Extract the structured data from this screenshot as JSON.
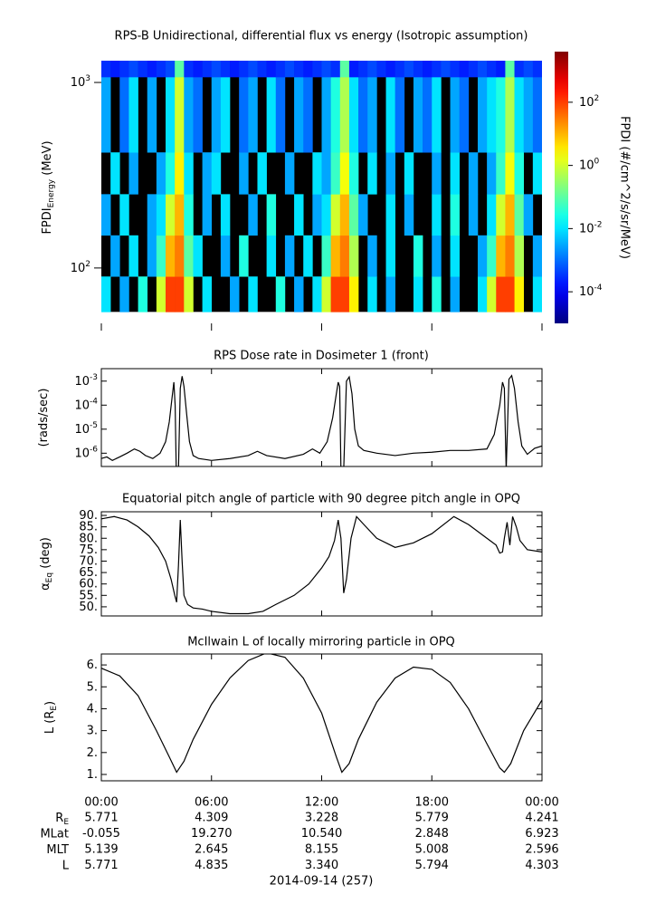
{
  "chart_data": [
    {
      "type": "spectrogram",
      "title": "RPS-B  Unidirectional, differential flux vs energy (Isotropic assumption)",
      "ylabel": {
        "text": "FPDI",
        "sub": "Energy",
        "after": " (MeV)"
      },
      "xlim": [
        0,
        24
      ],
      "ylim": [
        50.3,
        1466
      ],
      "ylog": true,
      "xticks": [
        0,
        6,
        12,
        18,
        24
      ],
      "yticks": [
        {
          "value": 100,
          "label": "10",
          "exponent": "2"
        },
        {
          "value": 1000,
          "label": "10",
          "exponent": "3"
        }
      ],
      "xbins": [
        0,
        0.5,
        1,
        1.5,
        2,
        2.5,
        3,
        3.5,
        4,
        4.5,
        5,
        5.5,
        6,
        6.5,
        7,
        7.5,
        8,
        8.5,
        9,
        9.5,
        10,
        10.5,
        11,
        11.5,
        12,
        12.5,
        13,
        13.5,
        14,
        14.5,
        15,
        15.5,
        16,
        16.5,
        17,
        17.5,
        18,
        18.5,
        19,
        19.5,
        20,
        20.5,
        21,
        21.5,
        22,
        22.5,
        23,
        23.5,
        24
      ],
      "ybins": [
        58,
        90,
        150,
        250,
        420,
        1070,
        1310
      ],
      "values": [
        [
          0.01,
          null,
          0.003,
          null,
          0.03,
          null,
          1,
          100,
          100,
          1,
          null,
          0.01,
          null,
          null,
          0.003,
          null,
          0.01,
          null,
          null,
          0.03,
          null,
          0.003,
          null,
          0.01,
          1,
          100,
          100,
          3,
          null,
          0.01,
          null,
          0.003,
          null,
          null,
          0.01,
          null,
          0.03,
          null,
          0.003,
          null,
          null,
          0.01,
          1,
          100,
          100,
          3,
          null,
          0.01
        ],
        [
          null,
          0.003,
          null,
          0.01,
          null,
          0.003,
          0.05,
          10,
          30,
          0.1,
          0.01,
          null,
          null,
          0.003,
          null,
          0.03,
          null,
          null,
          0.01,
          null,
          0.003,
          null,
          0.01,
          null,
          0.05,
          10,
          30,
          0.5,
          null,
          0.003,
          null,
          0.01,
          null,
          null,
          0.03,
          null,
          0.003,
          null,
          0.01,
          null,
          null,
          0.003,
          0.05,
          10,
          30,
          0.5,
          null,
          0.003
        ],
        [
          0.003,
          null,
          0.01,
          null,
          null,
          0.003,
          0.01,
          1,
          10,
          0.03,
          null,
          0.003,
          null,
          0.01,
          null,
          null,
          0.003,
          null,
          0.03,
          null,
          null,
          0.01,
          null,
          0.003,
          0.01,
          1,
          10,
          0.1,
          0.003,
          null,
          null,
          0.01,
          null,
          0.003,
          null,
          null,
          0.01,
          null,
          0.03,
          null,
          0.003,
          null,
          0.01,
          1,
          10,
          0.1,
          0.003,
          null
        ],
        [
          null,
          0.01,
          null,
          0.003,
          null,
          null,
          0.003,
          0.03,
          3,
          0.01,
          null,
          0.003,
          0.01,
          null,
          null,
          0.003,
          null,
          0.01,
          null,
          null,
          0.003,
          null,
          null,
          0.01,
          0.003,
          0.05,
          2,
          0.03,
          null,
          0.01,
          null,
          0.003,
          null,
          0.01,
          null,
          null,
          0.003,
          null,
          0.01,
          null,
          0.003,
          null,
          0.003,
          0.05,
          2,
          0.03,
          null,
          0.01
        ],
        [
          0.003,
          null,
          0.001,
          0.01,
          null,
          0.003,
          null,
          0.01,
          1,
          0.003,
          0.001,
          null,
          0.003,
          0.01,
          null,
          0.001,
          0.003,
          null,
          0.01,
          0.001,
          null,
          0.003,
          0.001,
          null,
          0.003,
          0.03,
          0.5,
          0.01,
          0.001,
          0.003,
          null,
          0.01,
          0.001,
          null,
          0.003,
          0.001,
          0.01,
          null,
          0.003,
          0.001,
          null,
          0.003,
          0.01,
          0.03,
          0.5,
          0.01,
          0.003,
          0.001
        ],
        [
          0.0003,
          0.0002,
          0.0003,
          0.0005,
          0.0003,
          0.0002,
          0.0003,
          0.0005,
          0.1,
          0.0003,
          0.0002,
          0.0003,
          0.0005,
          0.0003,
          0.0002,
          0.0003,
          0.0005,
          0.0003,
          0.0002,
          0.0003,
          0.0005,
          0.0003,
          0.0002,
          0.0003,
          0.0005,
          0.0003,
          0.1,
          0.0002,
          0.0003,
          0.0005,
          0.0003,
          0.0002,
          0.0003,
          0.0005,
          0.0003,
          0.0002,
          0.0003,
          0.0005,
          0.0003,
          0.0002,
          0.0003,
          0.0005,
          0.0003,
          0.0002,
          0.1,
          0.0003,
          0.0005,
          0.0003
        ]
      ],
      "colorbar": {
        "label": "FPDI (#/cm^2/s/sr/MeV)",
        "lim": [
          1e-05,
          4000
        ],
        "log": true,
        "colormap": "jet",
        "ticks": [
          {
            "value": 0.0001,
            "label": "10",
            "exponent": "-4"
          },
          {
            "value": 0.01,
            "label": "10",
            "exponent": "-2"
          },
          {
            "value": 1,
            "label": "10",
            "exponent": "0"
          },
          {
            "value": 100,
            "label": "10",
            "exponent": "2"
          }
        ]
      }
    },
    {
      "type": "line",
      "title": "RPS  Dose rate in Dosimeter 1 (front)",
      "ylabel": {
        "text": "(rads/sec)"
      },
      "xlim": [
        0,
        24
      ],
      "ylim": [
        2.8e-07,
        0.0033
      ],
      "ylog": true,
      "color": "#000000",
      "xticks": [
        0,
        6,
        12,
        18,
        24
      ],
      "yticks": [
        {
          "value": 1e-06,
          "label": "10",
          "exponent": "-6"
        },
        {
          "value": 1e-05,
          "label": "10",
          "exponent": "-5"
        },
        {
          "value": 0.0001,
          "label": "10",
          "exponent": "-4"
        },
        {
          "value": 0.001,
          "label": "10",
          "exponent": "-3"
        }
      ],
      "x": [
        0,
        0.3,
        0.6,
        1.0,
        1.4,
        1.8,
        2.1,
        2.4,
        2.8,
        3.2,
        3.5,
        3.7,
        3.85,
        3.95,
        4.02,
        4.08,
        4.2,
        4.3,
        4.4,
        4.5,
        4.65,
        4.8,
        5.0,
        5.3,
        6,
        7,
        8,
        8.5,
        9,
        10,
        11,
        11.5,
        11.9,
        12.3,
        12.6,
        12.8,
        12.9,
        12.98,
        13.05,
        13.2,
        13.35,
        13.5,
        13.65,
        13.8,
        14.0,
        14.3,
        15,
        16,
        17,
        18,
        19,
        20,
        21,
        21.4,
        21.7,
        21.85,
        21.95,
        22.05,
        22.2,
        22.35,
        22.5,
        22.7,
        22.9,
        23.2,
        23.6,
        24
      ],
      "values": [
        6e-07,
        7e-07,
        5e-07,
        7e-07,
        1e-06,
        1.5e-06,
        1.2e-06,
        8e-07,
        6e-07,
        1e-06,
        3e-06,
        2e-05,
        0.0002,
        0.0009,
        0.0001,
        2e-07,
        2e-07,
        0.0005,
        0.0016,
        0.0006,
        4e-05,
        3e-06,
        8e-07,
        6e-07,
        5e-07,
        6e-07,
        8e-07,
        1.2e-06,
        8e-07,
        6e-07,
        9e-07,
        1.5e-06,
        1e-06,
        3e-06,
        3e-05,
        0.0003,
        0.0009,
        0.0006,
        2e-07,
        2e-07,
        0.001,
        0.0015,
        0.0003,
        1e-05,
        2e-06,
        1.3e-06,
        1e-06,
        8e-07,
        1e-06,
        1.1e-06,
        1.3e-06,
        1.3e-06,
        1.5e-06,
        6e-06,
        0.0001,
        0.0009,
        0.0005,
        2e-07,
        0.0012,
        0.0017,
        0.0005,
        2e-05,
        2e-06,
        9e-07,
        1.6e-06,
        2e-06
      ]
    },
    {
      "type": "line",
      "title": "Equatorial pitch angle of particle with 90 degree pitch angle in OPQ",
      "ylabel": {
        "text": "α",
        "sub": "Eq",
        "after": " (deg)"
      },
      "xlim": [
        0,
        24
      ],
      "ylim": [
        46,
        91.6
      ],
      "color": "#000000",
      "xticks": [
        0,
        6,
        12,
        18,
        24
      ],
      "yticks": [
        {
          "value": 50,
          "label": "50."
        },
        {
          "value": 55,
          "label": "55."
        },
        {
          "value": 60,
          "label": "60."
        },
        {
          "value": 65,
          "label": "65."
        },
        {
          "value": 70,
          "label": "70."
        },
        {
          "value": 75,
          "label": "75."
        },
        {
          "value": 80,
          "label": "80."
        },
        {
          "value": 85,
          "label": "85."
        },
        {
          "value": 90,
          "label": "90."
        }
      ],
      "x": [
        0,
        0.7,
        1.4,
        2.0,
        2.6,
        3.1,
        3.5,
        3.8,
        4.0,
        4.1,
        4.2,
        4.3,
        4.4,
        4.5,
        4.7,
        5.0,
        5.5,
        6,
        7,
        8,
        8.8,
        9.5,
        10.5,
        11.3,
        12,
        12.4,
        12.7,
        12.9,
        13.05,
        13.2,
        13.35,
        13.6,
        13.9,
        14.3,
        15,
        16,
        17,
        18,
        19.2,
        20,
        21,
        21.5,
        21.7,
        21.85,
        21.95,
        22.1,
        22.25,
        22.4,
        22.6,
        22.8,
        23.2,
        24
      ],
      "values": [
        88.5,
        89.5,
        88,
        85,
        81,
        76,
        70,
        62,
        55,
        52,
        68,
        88,
        70,
        55,
        51,
        49.5,
        49,
        48,
        47,
        47,
        48,
        51,
        55,
        60,
        67,
        72,
        79,
        88,
        80,
        56,
        62,
        80,
        89.5,
        86,
        80,
        76,
        78,
        82,
        89.5,
        86,
        80,
        77,
        73.5,
        74,
        80,
        87,
        77,
        89.5,
        85,
        79,
        75,
        74
      ]
    },
    {
      "type": "line",
      "title": "McIlwain L of locally mirroring particle in OPQ",
      "ylabel": {
        "text": "L (R",
        "sub": "E",
        "after": ")"
      },
      "xlim": [
        0,
        24
      ],
      "ylim": [
        0.71,
        6.5
      ],
      "color": "#000000",
      "xticks": [
        {
          "value": 0,
          "label": "00:00"
        },
        {
          "value": 6,
          "label": "06:00"
        },
        {
          "value": 12,
          "label": "12:00"
        },
        {
          "value": 18,
          "label": "18:00"
        },
        {
          "value": 24,
          "label": "00:00"
        }
      ],
      "yticks": [
        {
          "value": 1,
          "label": "1."
        },
        {
          "value": 2,
          "label": "2."
        },
        {
          "value": 3,
          "label": "3."
        },
        {
          "value": 4,
          "label": "4."
        },
        {
          "value": 5,
          "label": "5."
        },
        {
          "value": 6,
          "label": "6."
        }
      ],
      "x": [
        0,
        1,
        2,
        3,
        3.7,
        4.1,
        4.5,
        5,
        6,
        7,
        8,
        9,
        10,
        11,
        12,
        12.8,
        13.1,
        13.5,
        14,
        15,
        16,
        17,
        18,
        19,
        20,
        21,
        21.7,
        21.95,
        22.3,
        23,
        24
      ],
      "values": [
        5.85,
        5.5,
        4.6,
        3.0,
        1.8,
        1.1,
        1.6,
        2.6,
        4.2,
        5.4,
        6.2,
        6.55,
        6.35,
        5.4,
        3.8,
        1.8,
        1.1,
        1.5,
        2.6,
        4.3,
        5.4,
        5.9,
        5.8,
        5.2,
        4.0,
        2.4,
        1.3,
        1.1,
        1.5,
        3.0,
        4.4
      ]
    }
  ],
  "ephemeris": {
    "rows": [
      {
        "label": "R",
        "sub": "E",
        "values": [
          "5.771",
          "4.309",
          "3.228",
          "5.779",
          "4.241"
        ]
      },
      {
        "label": "MLat",
        "values": [
          "-0.055",
          "19.270",
          "10.540",
          "2.848",
          "6.923"
        ]
      },
      {
        "label": "MLT",
        "values": [
          "5.139",
          "2.645",
          "8.155",
          "5.008",
          "2.596"
        ]
      },
      {
        "label": "L",
        "values": [
          "5.771",
          "4.835",
          "3.340",
          "5.794",
          "4.303"
        ]
      }
    ],
    "date": "2014-09-14 (257)"
  }
}
